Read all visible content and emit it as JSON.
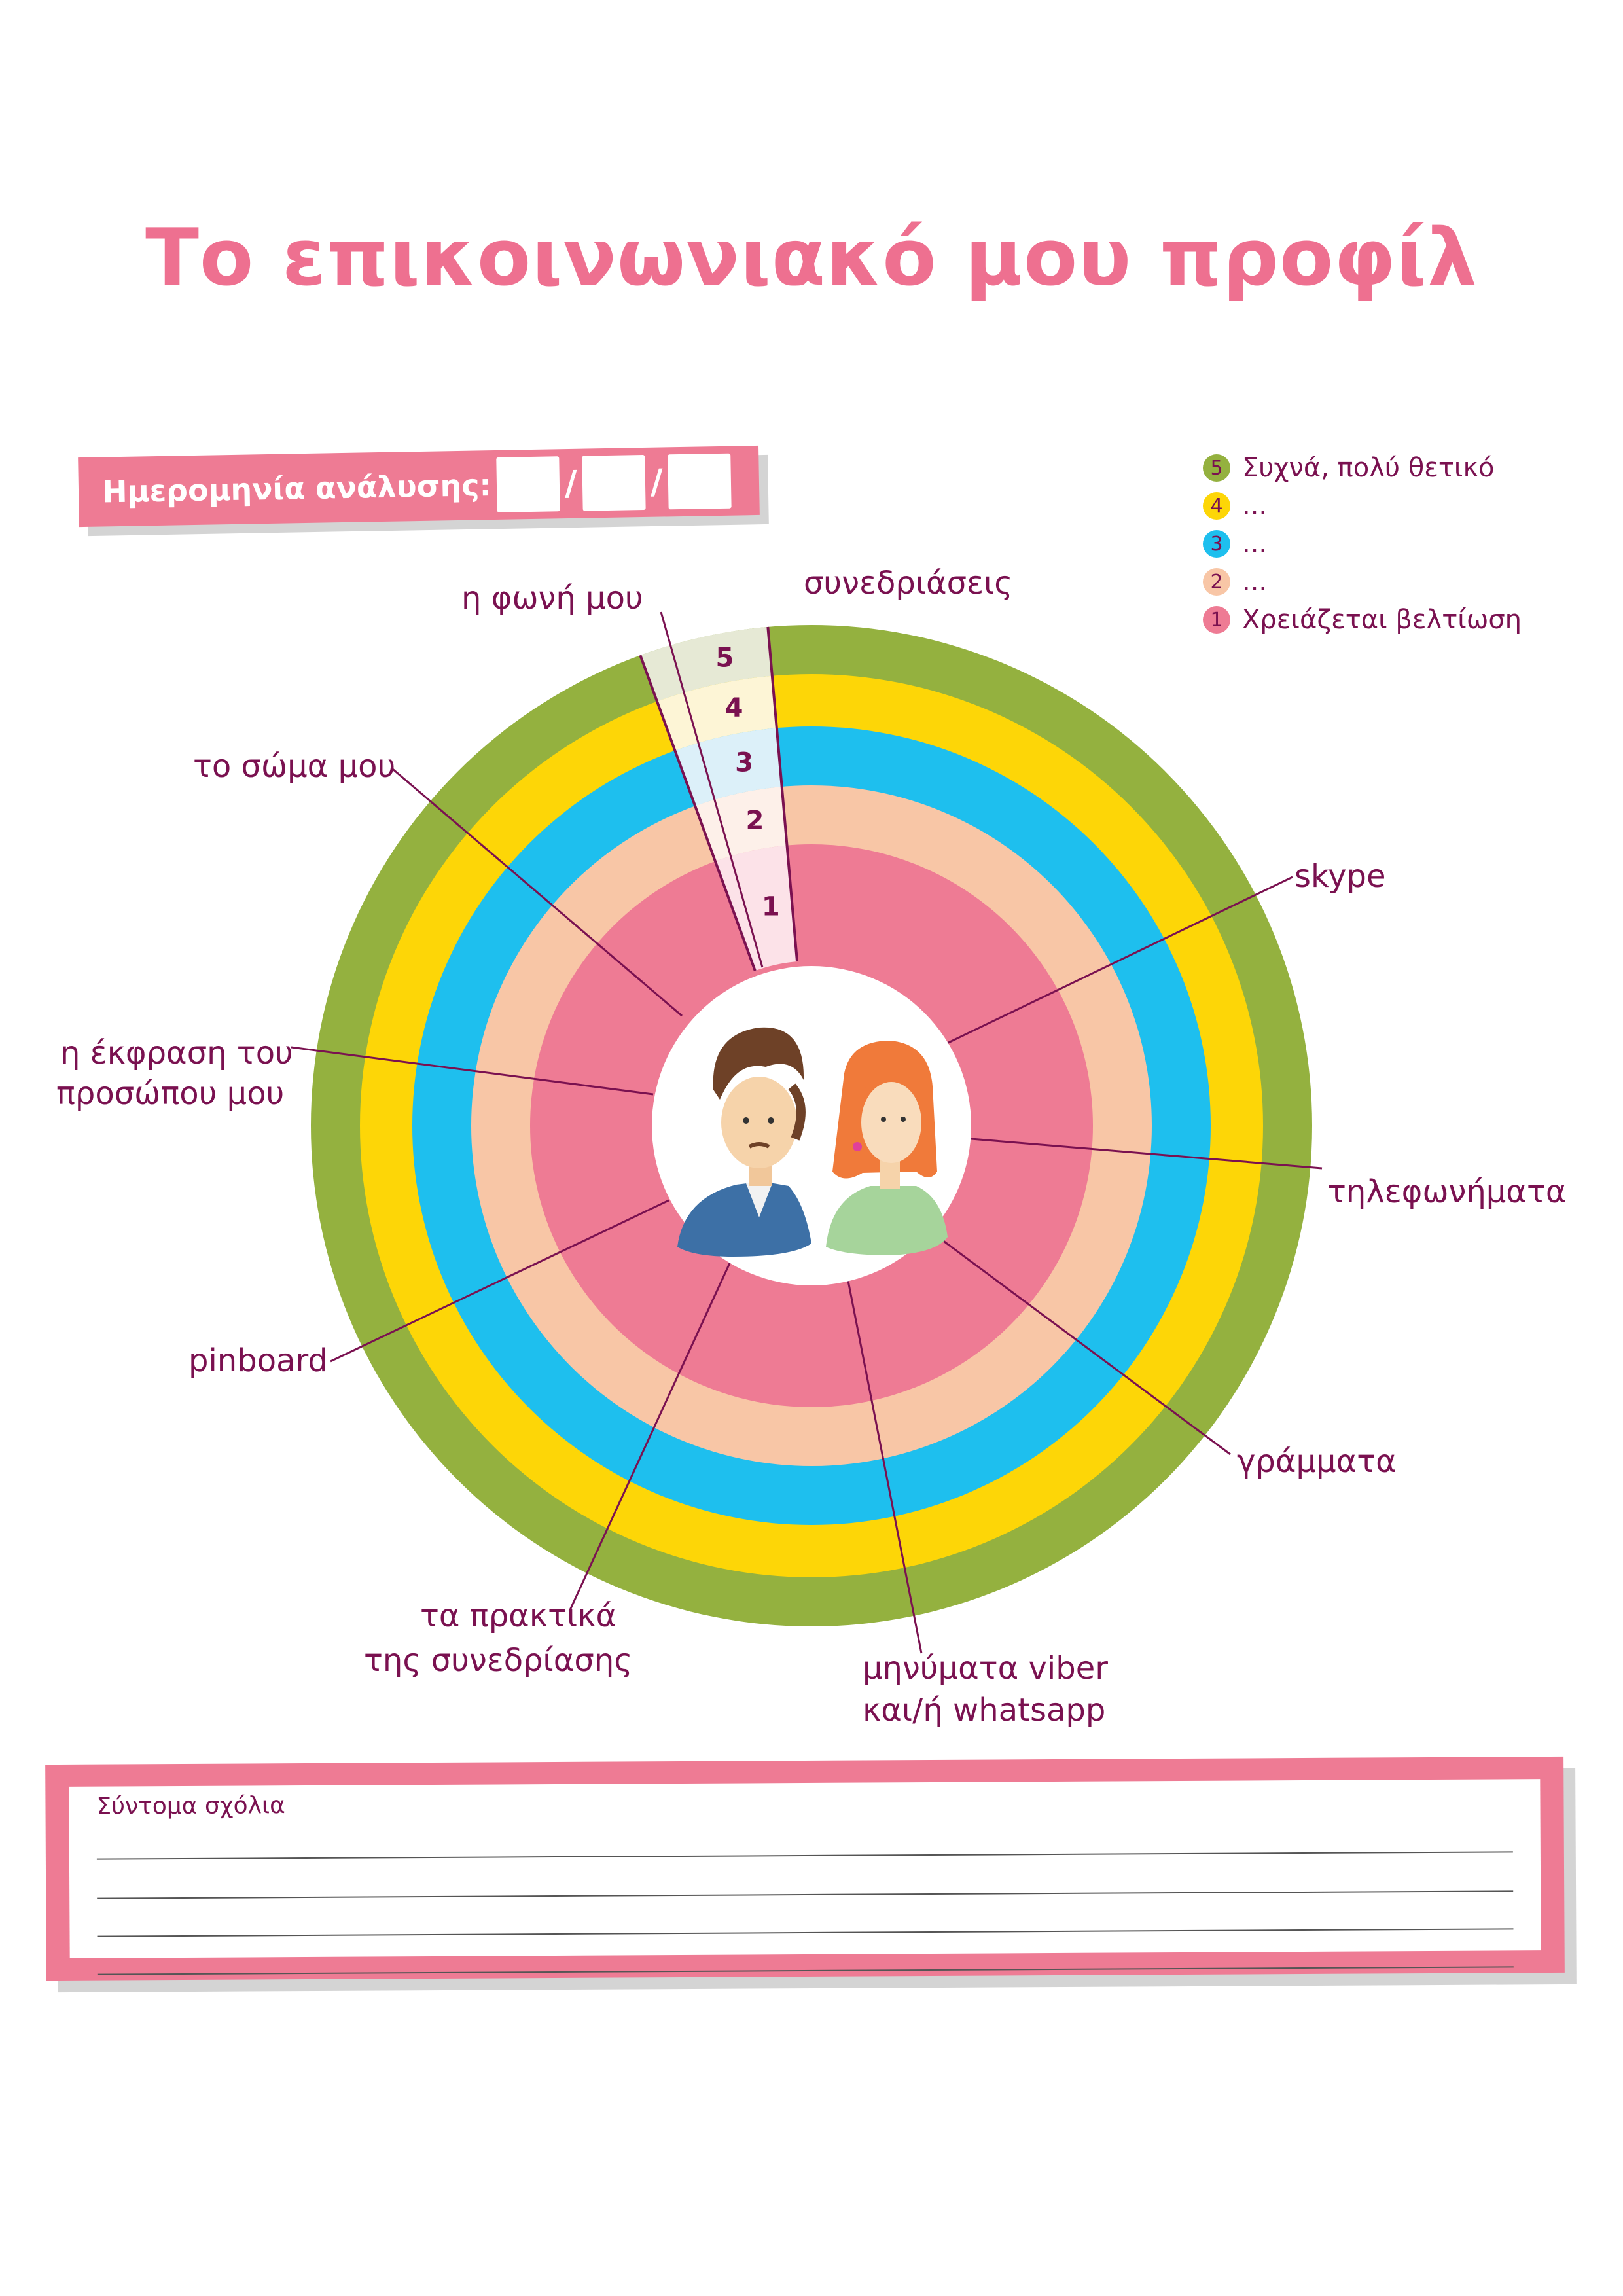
{
  "title": "Το επικοινωνιακό μου προφίλ",
  "date": {
    "label": "Ημερομηνία ανάλυσης:",
    "separator": "/"
  },
  "legend": [
    {
      "num": "5",
      "text": "Συχνά, πολύ θετικό",
      "color": "#94b13f"
    },
    {
      "num": "4",
      "text": "...",
      "color": "#fdd607"
    },
    {
      "num": "3",
      "text": "...",
      "color": "#1ebfee"
    },
    {
      "num": "2",
      "text": "...",
      "color": "#f8c6a6"
    },
    {
      "num": "1",
      "text": "Χρειάζεται βελτίωση",
      "color": "#ee7b94"
    }
  ],
  "rings": [
    {
      "level": "5",
      "color": "#94b13f",
      "highlight": "#e6e9d5"
    },
    {
      "level": "4",
      "color": "#fdd607",
      "highlight": "#fdf5d6"
    },
    {
      "level": "3",
      "color": "#1ebfee",
      "highlight": "#dcf0f9"
    },
    {
      "level": "2",
      "color": "#f8c6a6",
      "highlight": "#fdf0e9"
    },
    {
      "level": "1",
      "color": "#ee7b94",
      "highlight": "#fce2e8"
    }
  ],
  "categories": {
    "voice": "η φωνή μου",
    "meetings": "συνεδριάσεις",
    "body": "το σώμα μου",
    "skype": "skype",
    "face_1": "η έκφραση του",
    "face_2": "προσώπου μου",
    "calls": "τηλεφωνήματα",
    "pinboard": "pinboard",
    "letters": "γράμματα",
    "minutes_1": "τα πρακτικά",
    "minutes_2": "της συνεδρίασης",
    "messages_1": "μηνύματα viber",
    "messages_2": "και/ή whatsapp"
  },
  "comments": {
    "label": "Σύντομα σχόλια",
    "line_count": 4
  }
}
